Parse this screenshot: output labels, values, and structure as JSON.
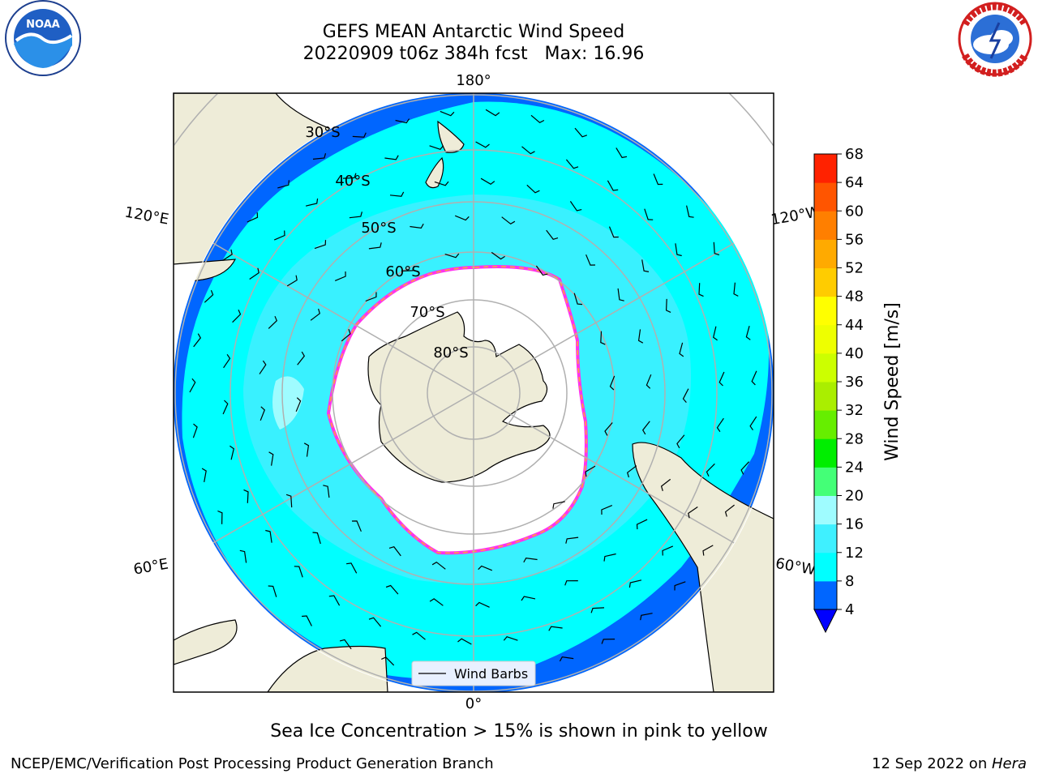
{
  "title": {
    "line1": "GEFS MEAN Antarctic Wind Speed",
    "line2": "20220909 t06z 384h fcst   Max: 16.96"
  },
  "map": {
    "projection": "south-polar-stereographic",
    "lon_labels": {
      "top": "180°",
      "bottom": "0°",
      "upper_left": "120°E",
      "upper_right": "120°W",
      "lower_left": "60°E",
      "lower_right": "60°W"
    },
    "lat_labels": [
      "30°S",
      "40°S",
      "50°S",
      "60°S",
      "70°S",
      "80°S"
    ],
    "legend_label": "Wind Barbs",
    "colors": {
      "land": "#eeecd8",
      "ice": "#ffffff",
      "ice_edge": "#ff33ee",
      "ice_edge_inner": "#ffaa33"
    }
  },
  "colorbar": {
    "label": "Wind Speed [m/s]",
    "ticks": [
      "4",
      "8",
      "12",
      "16",
      "20",
      "24",
      "28",
      "32",
      "36",
      "40",
      "44",
      "48",
      "52",
      "56",
      "60",
      "64",
      "68"
    ],
    "colors": [
      "#0066ff",
      "#00ffff",
      "#3ff0ff",
      "#9ffcff",
      "#44ff77",
      "#00ee00",
      "#66ee00",
      "#aaee00",
      "#ccff00",
      "#eeff00",
      "#ffff00",
      "#ffcc00",
      "#ffaa00",
      "#ff7f00",
      "#ff5500",
      "#ff2200",
      "#ff0000"
    ],
    "underflow_color": "#0000ff"
  },
  "caption": "Sea Ice Concentration > 15% is shown in pink to yellow",
  "footer": {
    "left": "NCEP/EMC/Verification Post Processing Product Generation Branch",
    "right_date": "12 Sep 2022 on ",
    "right_host": "Hera"
  },
  "logos": {
    "left": "NOAA",
    "right": "NATIONAL WEATHER SERVICE"
  }
}
